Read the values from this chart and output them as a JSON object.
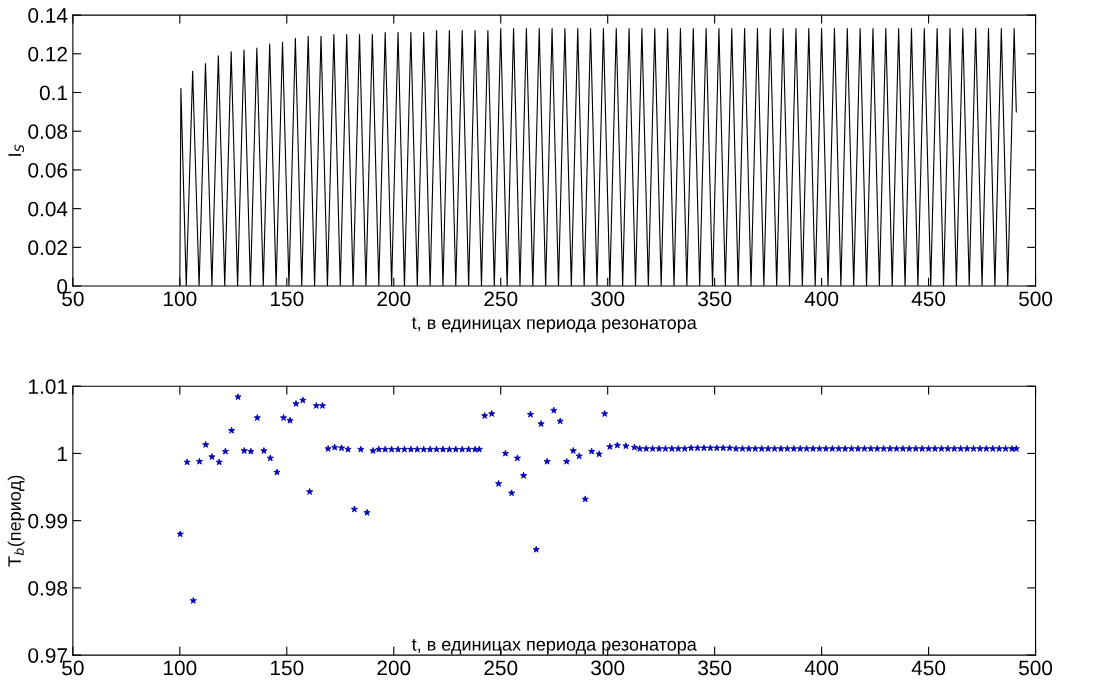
{
  "chart_data": [
    {
      "type": "line",
      "ylabel": "I$_{S}$",
      "xlabel": "t, в единицах периода резонатора",
      "xlim": [
        50,
        500
      ],
      "xticks": [
        50,
        100,
        150,
        200,
        250,
        300,
        350,
        400,
        450,
        500
      ],
      "ylim": [
        0,
        0.14
      ],
      "yticks": [
        0,
        0.02,
        0.04,
        0.06,
        0.08,
        0.1,
        0.12,
        0.14
      ],
      "marker": "none",
      "line_style": "solid",
      "series": [
        {
          "color": "#000000",
          "x": [
            100,
            100.5,
            103,
            106,
            109,
            112,
            115,
            118,
            121,
            124,
            127,
            130,
            133,
            136,
            139,
            142,
            145,
            148,
            151,
            154,
            157,
            160,
            163,
            166,
            169,
            172,
            175,
            178,
            181,
            184,
            187,
            190,
            193,
            196,
            199,
            202,
            205,
            208,
            211,
            214,
            217,
            220,
            223,
            226,
            229,
            232,
            235,
            238,
            241,
            244,
            247,
            250,
            253,
            256,
            259,
            262,
            265,
            268,
            271,
            274,
            277,
            280,
            283,
            286,
            289,
            292,
            295,
            298,
            301,
            304,
            307,
            310,
            313,
            316,
            319,
            322,
            325,
            328,
            331,
            334,
            337,
            340,
            343,
            346,
            349,
            352,
            355,
            358,
            361,
            364,
            367,
            370,
            373,
            376,
            379,
            382,
            385,
            388,
            391,
            394,
            397,
            400,
            403,
            406,
            409,
            412,
            415,
            418,
            421,
            424,
            427,
            430,
            433,
            436,
            439,
            442,
            445,
            448,
            451,
            454,
            457,
            460,
            463,
            466,
            469,
            472,
            475,
            478,
            481,
            484,
            487,
            490,
            491
          ],
          "values": [
            0,
            0.102,
            0,
            0.111,
            0,
            0.115,
            0,
            0.119,
            0,
            0.121,
            0,
            0.122,
            0,
            0.123,
            0,
            0.125,
            0,
            0.126,
            0,
            0.128,
            0,
            0.129,
            0,
            0.129,
            0,
            0.13,
            0,
            0.13,
            0,
            0.13,
            0,
            0.13,
            0,
            0.131,
            0,
            0.131,
            0,
            0.131,
            0,
            0.131,
            0,
            0.132,
            0,
            0.132,
            0,
            0.132,
            0,
            0.132,
            0,
            0.132,
            0,
            0.133,
            0,
            0.133,
            0,
            0.133,
            0,
            0.133,
            0,
            0.133,
            0,
            0.133,
            0,
            0.133,
            0,
            0.133,
            0,
            0.133,
            0,
            0.133,
            0,
            0.133,
            0,
            0.133,
            0,
            0.133,
            0,
            0.133,
            0,
            0.133,
            0,
            0.133,
            0,
            0.133,
            0,
            0.133,
            0,
            0.133,
            0,
            0.133,
            0,
            0.133,
            0,
            0.133,
            0,
            0.133,
            0,
            0.133,
            0,
            0.133,
            0,
            0.133,
            0,
            0.133,
            0,
            0.133,
            0,
            0.133,
            0,
            0.133,
            0,
            0.133,
            0,
            0.133,
            0,
            0.133,
            0,
            0.133,
            0,
            0.133,
            0,
            0.133,
            0,
            0.133,
            0,
            0.133,
            0,
            0.133,
            0,
            0.133,
            0,
            0.133,
            0.09
          ]
        }
      ]
    },
    {
      "type": "scatter",
      "ylabel": "T$_{b}$(период)",
      "xlabel": "t, в единицах периода резонатора",
      "xlim": [
        50,
        500
      ],
      "xticks": [
        50,
        100,
        150,
        200,
        250,
        300,
        350,
        400,
        450,
        500
      ],
      "ylim": [
        0.97,
        1.01
      ],
      "yticks": [
        0.97,
        0.98,
        0.99,
        1,
        1.01
      ],
      "marker": "star",
      "series": [
        {
          "color": "#0000b4",
          "x": [
            100.2,
            103.4,
            106.3,
            109.2,
            112.1,
            115,
            118.4,
            121.3,
            124.2,
            127.2,
            130.1,
            133.2,
            136.2,
            139.3,
            142.3,
            145.4,
            148.5,
            151.5,
            154.3,
            157.5,
            160.7,
            163.8,
            166.7,
            169.3,
            172.4,
            175.6,
            178.6,
            181.6,
            184.6,
            187.5,
            190.3,
            193,
            196,
            199,
            202,
            205,
            208,
            211,
            214,
            217,
            220,
            223,
            226,
            229,
            232,
            235,
            238,
            240,
            242.5,
            245.8,
            249,
            252.2,
            255.1,
            257.8,
            260.7,
            263.9,
            266.6,
            268.9,
            271.7,
            274.8,
            277.8,
            280.8,
            283.9,
            286.7,
            289.5,
            292.5,
            296,
            298.6,
            301,
            304.5,
            308.5,
            312.5,
            315,
            318,
            321,
            324,
            327,
            330,
            333,
            336,
            339,
            342,
            345,
            348,
            351,
            354,
            357,
            360,
            363,
            366,
            369,
            372,
            375,
            378,
            381,
            384,
            387,
            390,
            393,
            396,
            399,
            402,
            405,
            408,
            411,
            414,
            417,
            420,
            423,
            426,
            429,
            432,
            435,
            438,
            441,
            444,
            447,
            450,
            453,
            456,
            459,
            462,
            465,
            468,
            471,
            474,
            477,
            480,
            483,
            486,
            489,
            491
          ],
          "values": [
            0.988,
            0.9987,
            0.9781,
            0.9988,
            1.0013,
            0.9995,
            0.9987,
            1.0003,
            1.0034,
            1.0084,
            1.0004,
            1.0003,
            1.0053,
            1.0004,
            0.9993,
            0.9972,
            1.0053,
            1.0049,
            1.0074,
            1.0079,
            0.9943,
            1.0071,
            1.0071,
            1.0007,
            1.0009,
            1.0008,
            1.0006,
            0.9917,
            1.0006,
            0.9912,
            1.0004,
            1.0006,
            1.0006,
            1.0006,
            1.0006,
            1.0006,
            1.0006,
            1.0006,
            1.0006,
            1.0006,
            1.0006,
            1.0006,
            1.0006,
            1.0006,
            1.0006,
            1.0006,
            1.0006,
            1.0006,
            1.0056,
            1.0059,
            0.9955,
            1.0,
            0.9941,
            0.9993,
            0.9967,
            1.0058,
            0.9857,
            1.0044,
            0.9988,
            1.0064,
            1.0048,
            0.9988,
            1.0004,
            0.9996,
            0.9932,
            1.0003,
            0.9999,
            1.0059,
            1.001,
            1.0012,
            1.0011,
            1.0009,
            1.0007,
            1.0007,
            1.0007,
            1.0007,
            1.0007,
            1.0007,
            1.0007,
            1.0007,
            1.0008,
            1.0008,
            1.0008,
            1.0008,
            1.0008,
            1.0008,
            1.0008,
            1.0007,
            1.0007,
            1.0007,
            1.0007,
            1.0007,
            1.0007,
            1.0007,
            1.0007,
            1.0007,
            1.0007,
            1.0007,
            1.0007,
            1.0007,
            1.0007,
            1.0007,
            1.0007,
            1.0007,
            1.0007,
            1.0007,
            1.0007,
            1.0007,
            1.0007,
            1.0007,
            1.0007,
            1.0007,
            1.0007,
            1.0007,
            1.0007,
            1.0007,
            1.0007,
            1.0007,
            1.0007,
            1.0007,
            1.0007,
            1.0007,
            1.0007,
            1.0007,
            1.0007,
            1.0007,
            1.0007,
            1.0007,
            1.0007,
            1.0007,
            1.0007,
            1.0007
          ]
        }
      ]
    }
  ]
}
